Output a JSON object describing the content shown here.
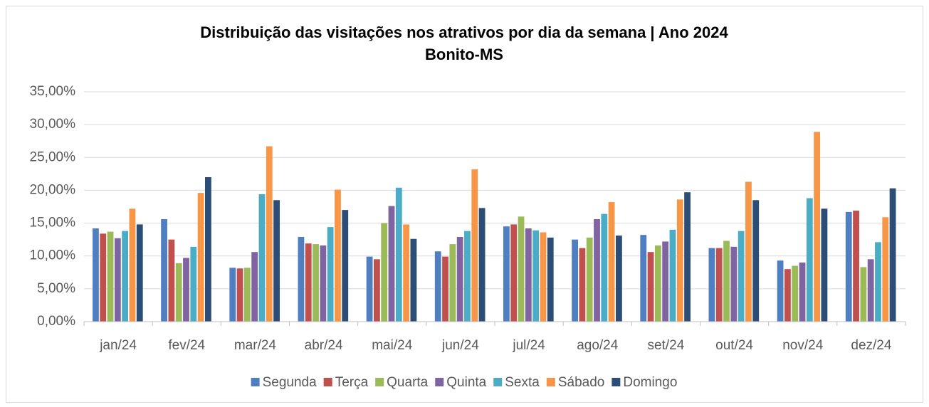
{
  "chart_data": {
    "type": "bar",
    "title": "Distribuição das visitações nos atrativos por dia da semana | Ano 2024",
    "subtitle": "Bonito-MS",
    "categories": [
      "jan/24",
      "fev/24",
      "mar/24",
      "abr/24",
      "mai/24",
      "jun/24",
      "jul/24",
      "ago/24",
      "set/24",
      "out/24",
      "nov/24",
      "dez/24"
    ],
    "series": [
      {
        "name": "Segunda",
        "color": "#4f7fc1",
        "values": [
          14.2,
          15.6,
          8.2,
          12.9,
          9.9,
          10.7,
          14.5,
          12.5,
          13.2,
          11.2,
          9.3,
          16.7
        ]
      },
      {
        "name": "Terça",
        "color": "#c0504d",
        "values": [
          13.4,
          12.5,
          8.1,
          11.9,
          9.5,
          9.9,
          14.8,
          11.2,
          10.6,
          11.2,
          8.0,
          16.9
        ]
      },
      {
        "name": "Quarta",
        "color": "#9bbb59",
        "values": [
          13.7,
          8.9,
          8.2,
          11.8,
          15.0,
          11.8,
          16.0,
          12.8,
          11.6,
          12.3,
          8.5,
          8.3
        ]
      },
      {
        "name": "Quinta",
        "color": "#8064a2",
        "values": [
          12.7,
          9.7,
          10.6,
          11.6,
          17.6,
          12.9,
          14.2,
          15.6,
          12.2,
          11.4,
          9.0,
          9.5
        ]
      },
      {
        "name": "Sexta",
        "color": "#4bacc6",
        "values": [
          13.8,
          11.4,
          19.4,
          14.4,
          20.4,
          13.8,
          13.9,
          16.4,
          14.0,
          13.8,
          18.8,
          12.1
        ]
      },
      {
        "name": "Sábado",
        "color": "#f79646",
        "values": [
          17.2,
          19.6,
          26.7,
          20.1,
          14.8,
          23.2,
          13.6,
          18.2,
          18.6,
          21.3,
          28.9,
          15.9
        ]
      },
      {
        "name": "Domingo",
        "color": "#2c4d75",
        "values": [
          14.8,
          22.0,
          18.5,
          17.0,
          12.6,
          17.3,
          12.8,
          13.1,
          19.7,
          18.5,
          17.2,
          20.3
        ]
      }
    ],
    "ylim": [
      0,
      35
    ],
    "yticks": [
      {
        "value": 0,
        "label": "0,00%"
      },
      {
        "value": 5,
        "label": "5,00%"
      },
      {
        "value": 10,
        "label": "10,00%"
      },
      {
        "value": 15,
        "label": "15,00%"
      },
      {
        "value": 20,
        "label": "20,00%"
      },
      {
        "value": 25,
        "label": "25,00%"
      },
      {
        "value": 30,
        "label": "30,00%"
      },
      {
        "value": 35,
        "label": "35,00%"
      }
    ],
    "grid": true,
    "legend": "bottom"
  }
}
